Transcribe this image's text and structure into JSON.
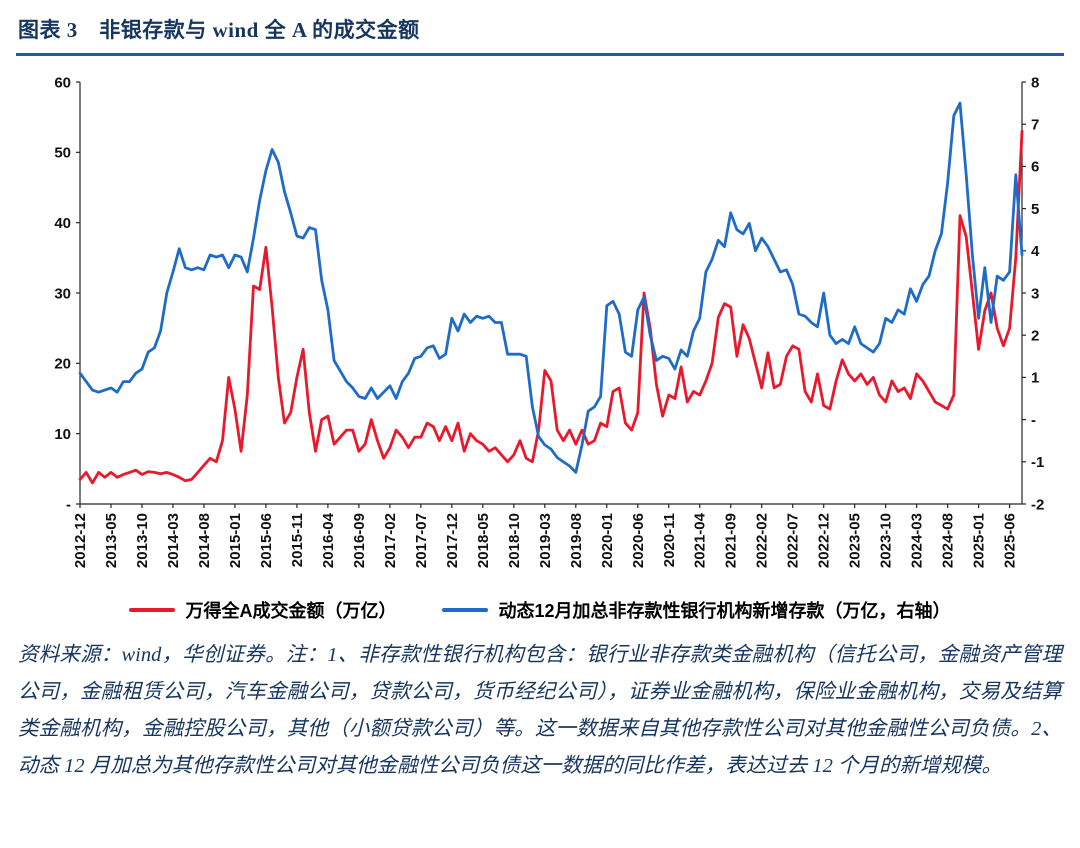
{
  "title": "图表 3　非银存款与 wind 全 A 的成交金额",
  "colors": {
    "title": "#17365d",
    "title_rule": "#2a55a5",
    "red_series": "#e8192c",
    "blue_series": "#1e6cc8",
    "axis": "#262626"
  },
  "legend": [
    {
      "label": "万得全A成交金额（万亿）",
      "color": "#e8192c"
    },
    {
      "label": "动态12月加总非存款性银行机构新增存款（万亿，右轴）",
      "color": "#1e6cc8"
    }
  ],
  "footnote": "资料来源：wind，华创证券。注：1、非存款性银行机构包含：银行业非存款类金融机构（信托公司，金融资产管理公司，金融租赁公司，汽车金融公司，贷款公司，货币经纪公司），证券业金融机构，保险业金融机构，交易及结算类金融机构，金融控股公司，其他（小额贷款公司）等。这一数据来自其他存款性公司对其他金融性公司负债。2、动态 12 月加总为其他存款性公司对其他金融性公司负债这一数据的同比作差，表达过去 12 个月的新增规模。",
  "chart_data": {
    "type": "line",
    "grid": false,
    "legend_position": "bottom",
    "x_start": "2012-12",
    "x_frequency": "monthly",
    "x_label_step_months": 5,
    "x_labels": [
      "2012-12",
      "2013-05",
      "2013-10",
      "2014-03",
      "2014-08",
      "2015-01",
      "2015-06",
      "2015-11",
      "2016-04",
      "2016-09",
      "2017-02",
      "2017-07",
      "2017-12",
      "2018-05",
      "2018-10",
      "2019-03",
      "2019-08",
      "2020-01",
      "2020-06",
      "2020-11",
      "2021-04",
      "2021-09",
      "2022-02",
      "2022-07",
      "2022-12",
      "2023-05",
      "2023-10",
      "2024-03",
      "2024-08",
      "2025-01",
      "2025-06"
    ],
    "left_axis": {
      "min": 0,
      "max": 60,
      "ticks": [
        "60",
        "50",
        "40",
        "30",
        "20",
        "10",
        "-"
      ]
    },
    "right_axis": {
      "min": -2,
      "max": 8,
      "ticks": [
        "8",
        "7",
        "6",
        "5",
        "4",
        "3",
        "2",
        "1",
        "-",
        "-1",
        "-2"
      ]
    },
    "series": [
      {
        "name": "万得全A成交金额（万亿）",
        "axis": "left",
        "color": "#e8192c",
        "values": [
          3.5,
          4.5,
          3.0,
          4.5,
          3.8,
          4.5,
          3.8,
          4.2,
          4.5,
          4.8,
          4.2,
          4.6,
          4.5,
          4.3,
          4.5,
          4.2,
          3.8,
          3.3,
          3.5,
          4.5,
          5.5,
          6.5,
          6.0,
          9.0,
          18.0,
          13.5,
          7.5,
          15.5,
          31.0,
          30.5,
          36.5,
          28.0,
          18.0,
          11.5,
          13.0,
          18.0,
          22.0,
          13.0,
          7.5,
          12.0,
          12.5,
          8.5,
          9.5,
          10.5,
          10.5,
          7.5,
          8.5,
          12.0,
          9.0,
          6.5,
          8.0,
          10.5,
          9.5,
          8.0,
          9.5,
          9.5,
          11.5,
          11.0,
          9.0,
          11.0,
          9.0,
          11.5,
          7.5,
          10.0,
          9.0,
          8.5,
          7.5,
          8.0,
          7.0,
          6.0,
          7.0,
          9.0,
          6.5,
          6.0,
          10.5,
          19.0,
          17.5,
          10.5,
          9.0,
          10.5,
          8.5,
          10.5,
          8.5,
          9.0,
          11.5,
          11.0,
          16.0,
          16.5,
          11.5,
          10.5,
          13.0,
          30.0,
          25.0,
          17.0,
          12.5,
          15.5,
          15.0,
          19.5,
          14.5,
          16.0,
          15.5,
          17.5,
          20.0,
          26.5,
          28.5,
          28.0,
          21.0,
          25.5,
          23.5,
          20.0,
          16.5,
          21.5,
          16.5,
          17.0,
          21.0,
          22.5,
          22.0,
          16.0,
          14.5,
          18.5,
          14.0,
          13.5,
          17.5,
          20.5,
          18.5,
          17.5,
          18.5,
          17.0,
          18.0,
          15.5,
          14.5,
          17.5,
          16.0,
          16.5,
          15.0,
          18.5,
          17.5,
          16.0,
          14.5,
          14.0,
          13.5,
          15.5,
          41.0,
          38.0,
          30.0,
          22.0,
          27.5,
          30.0,
          25.0,
          22.5,
          25.0,
          35.0,
          53.0
        ]
      },
      {
        "name": "动态12月加总非存款性银行机构新增存款（万亿，右轴）",
        "axis": "right",
        "color": "#1e6cc8",
        "values": [
          1.1,
          0.9,
          0.7,
          0.65,
          0.7,
          0.75,
          0.65,
          0.9,
          0.9,
          1.1,
          1.2,
          1.6,
          1.7,
          2.1,
          3.0,
          3.5,
          4.05,
          3.6,
          3.55,
          3.6,
          3.55,
          3.9,
          3.85,
          3.9,
          3.6,
          3.9,
          3.85,
          3.5,
          4.3,
          5.2,
          5.9,
          6.4,
          6.1,
          5.4,
          4.9,
          4.35,
          4.3,
          4.55,
          4.5,
          3.3,
          2.6,
          1.4,
          1.15,
          0.9,
          0.75,
          0.55,
          0.5,
          0.75,
          0.5,
          0.65,
          0.8,
          0.5,
          0.9,
          1.1,
          1.45,
          1.5,
          1.7,
          1.75,
          1.45,
          1.55,
          2.4,
          2.1,
          2.5,
          2.3,
          2.45,
          2.4,
          2.45,
          2.3,
          2.3,
          1.55,
          1.55,
          1.55,
          1.5,
          0.3,
          -0.4,
          -0.6,
          -0.7,
          -0.9,
          -1.0,
          -1.1,
          -1.25,
          -0.6,
          0.2,
          0.3,
          0.55,
          2.7,
          2.8,
          2.5,
          1.6,
          1.5,
          2.6,
          2.9,
          2.0,
          1.4,
          1.5,
          1.45,
          1.2,
          1.65,
          1.5,
          2.1,
          2.4,
          3.5,
          3.8,
          4.25,
          4.1,
          4.9,
          4.5,
          4.4,
          4.65,
          4.0,
          4.3,
          4.1,
          3.8,
          3.5,
          3.55,
          3.2,
          2.5,
          2.45,
          2.3,
          2.2,
          3.0,
          2.0,
          1.8,
          1.9,
          1.8,
          2.2,
          1.8,
          1.7,
          1.6,
          1.8,
          2.4,
          2.3,
          2.6,
          2.5,
          3.1,
          2.8,
          3.2,
          3.4,
          4.0,
          4.4,
          5.6,
          7.2,
          7.5,
          5.8,
          3.9,
          2.4,
          3.6,
          2.3,
          3.4,
          3.3,
          3.5,
          5.8,
          3.9
        ]
      }
    ]
  }
}
